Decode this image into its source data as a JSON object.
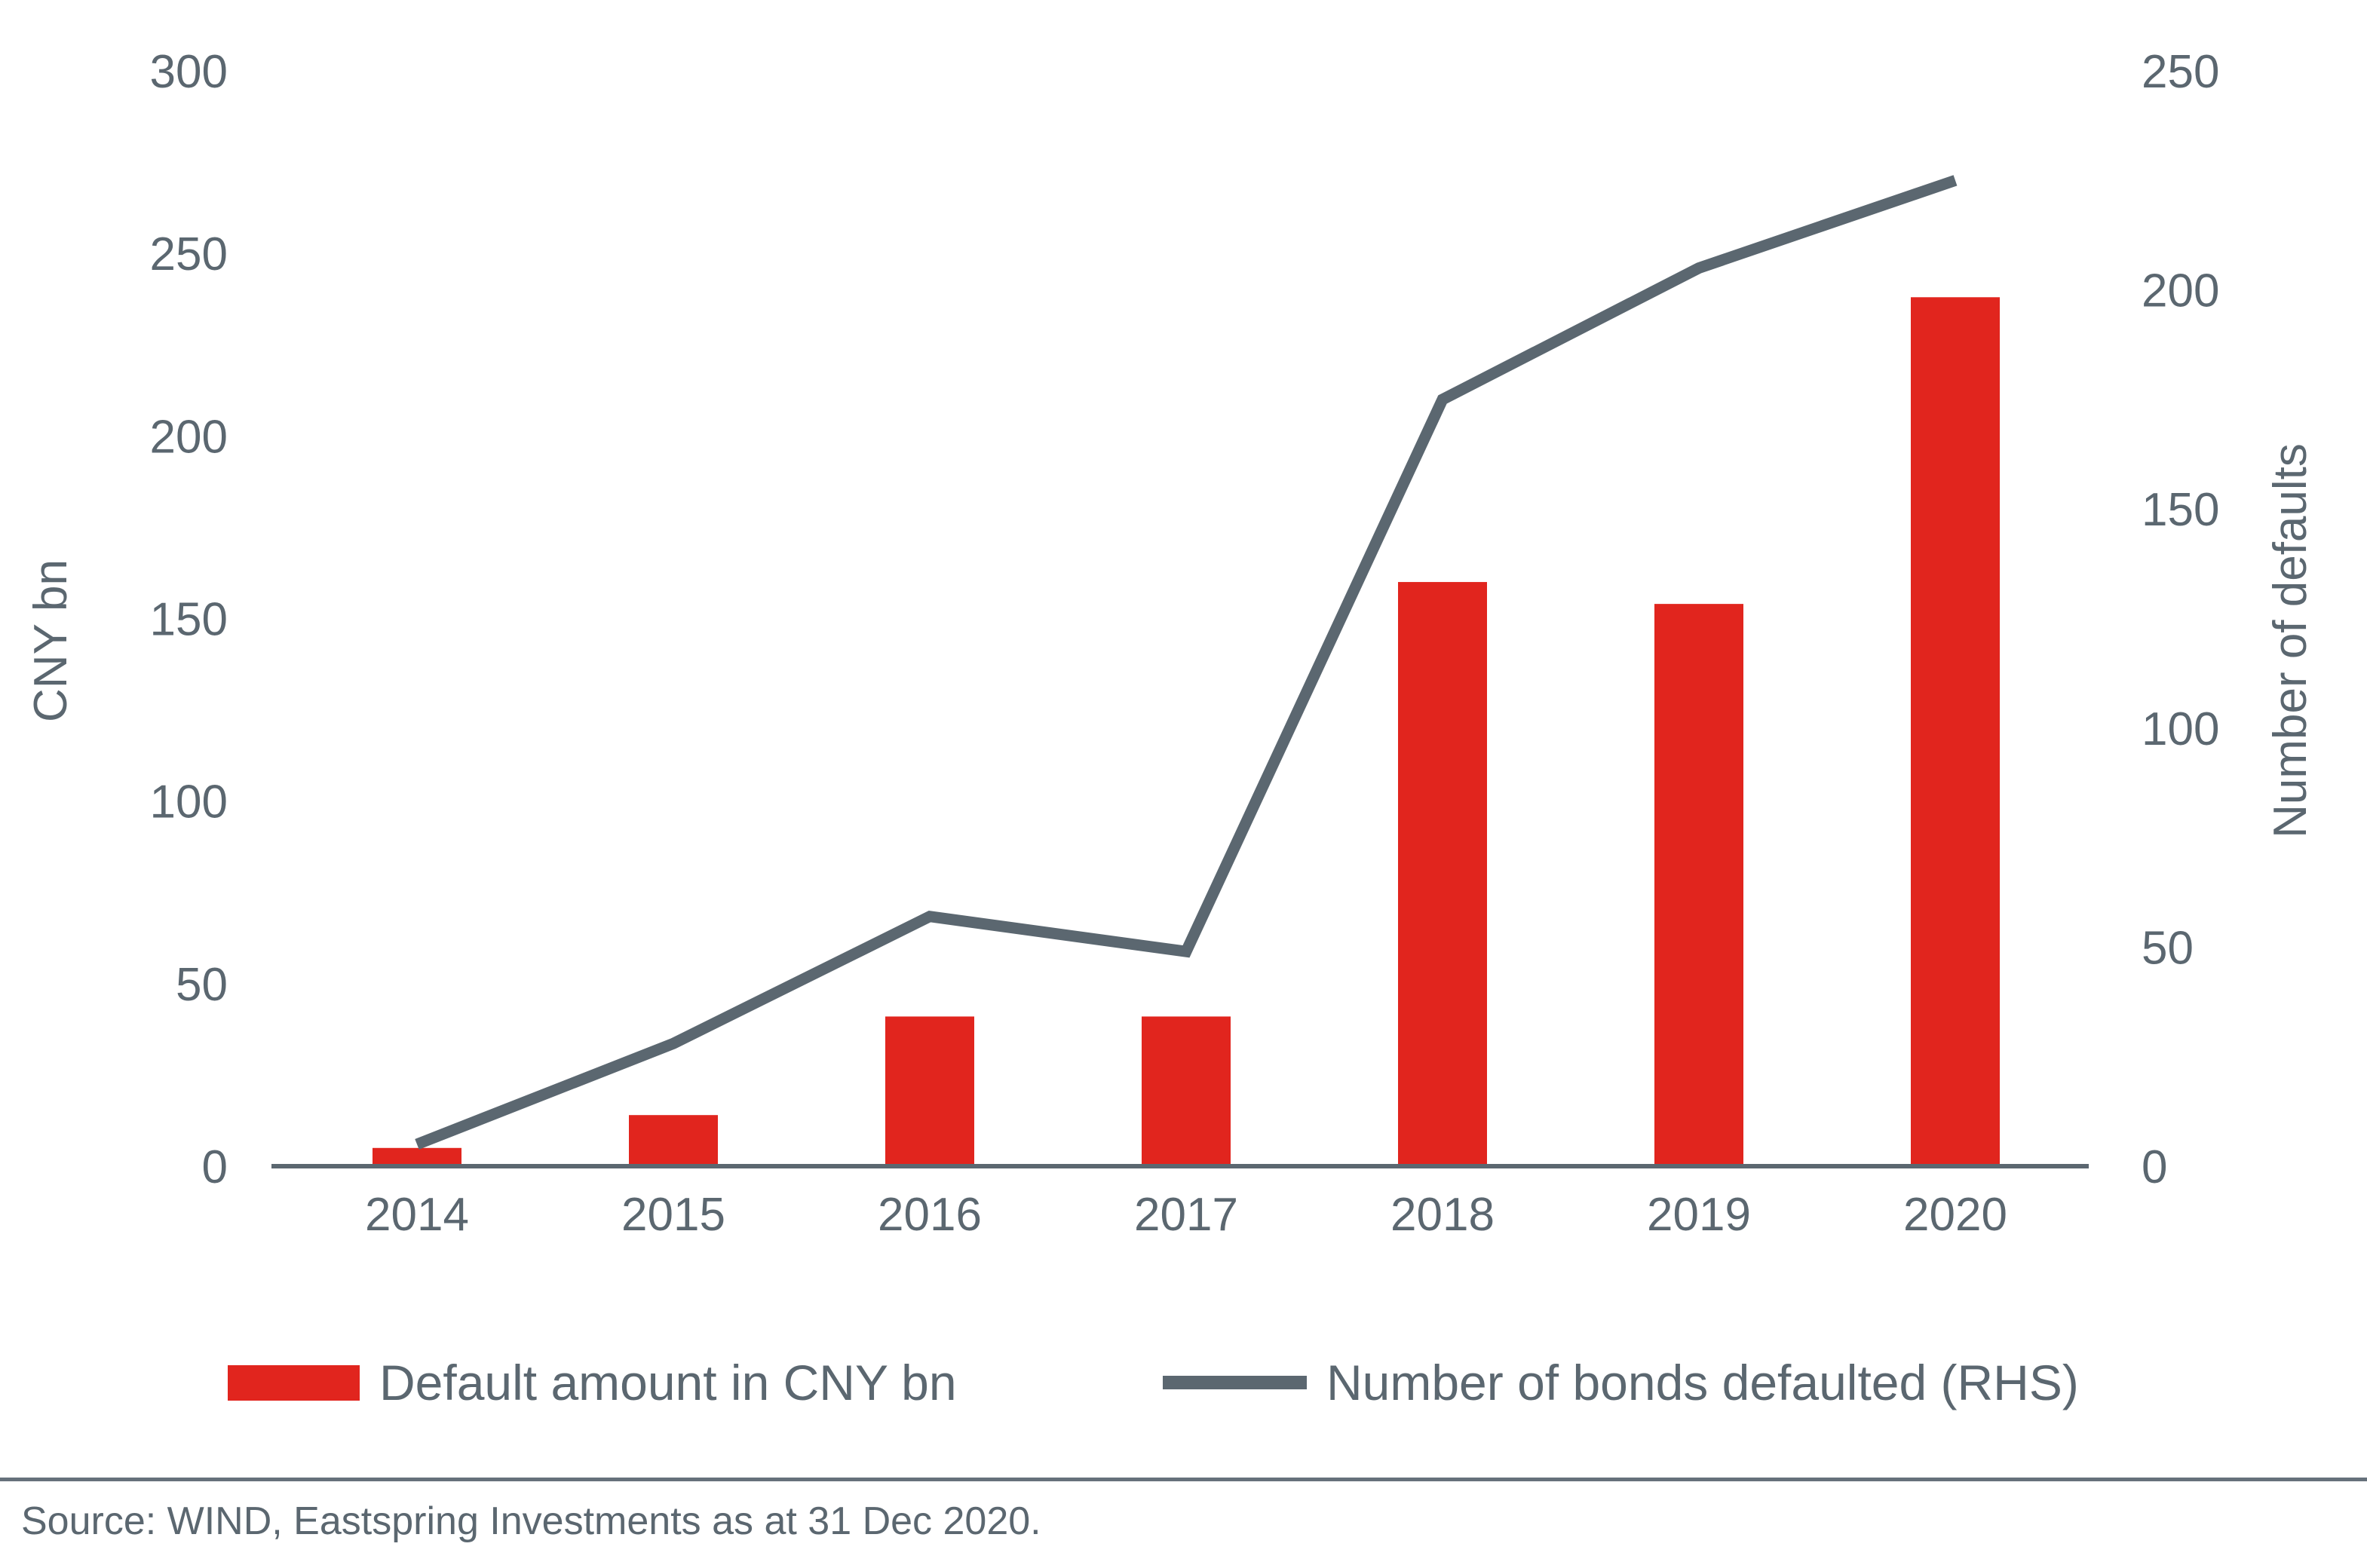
{
  "chart_data": {
    "type": "combo_bar_line",
    "title": "",
    "categories": [
      "2014",
      "2015",
      "2016",
      "2017",
      "2018",
      "2019",
      "2020"
    ],
    "series": [
      {
        "name": "Default amount in CNY bn",
        "type": "bar",
        "axis": "left",
        "color": "#e1251e",
        "values": [
          5,
          14,
          41,
          41,
          160,
          154,
          238
        ]
      },
      {
        "name": "Number of bonds defaulted (RHS)",
        "type": "line",
        "axis": "right",
        "color": "#5b6770",
        "values": [
          5,
          28,
          57,
          49,
          175,
          205,
          225
        ]
      }
    ],
    "left_axis": {
      "title": "CNY bn",
      "min": 0,
      "max": 300,
      "tick_step": 50,
      "tick_labels": [
        "0",
        "50",
        "100",
        "150",
        "200",
        "250",
        "300"
      ]
    },
    "right_axis": {
      "title": "Number of defaults",
      "min": 0,
      "max": 250,
      "tick_step": 50,
      "tick_labels": [
        "0",
        "50",
        "100",
        "150",
        "200",
        "250"
      ]
    },
    "grid": false,
    "legend_position": "bottom"
  },
  "legend": {
    "items": [
      {
        "label": "Default amount in CNY bn",
        "swatch": "rect",
        "color": "#e1251e"
      },
      {
        "label": "Number of bonds defaulted (RHS)",
        "swatch": "line",
        "color": "#5b6770"
      }
    ]
  },
  "footer": {
    "source": "Source: WIND, Eastspring Investments as at 31 Dec 2020."
  },
  "colors": {
    "bar_red": "#e1251e",
    "line_gray": "#5b6770",
    "text": "#5b6770",
    "axis_line": "#5b6770",
    "divider": "#66717b",
    "background": "#ffffff"
  }
}
